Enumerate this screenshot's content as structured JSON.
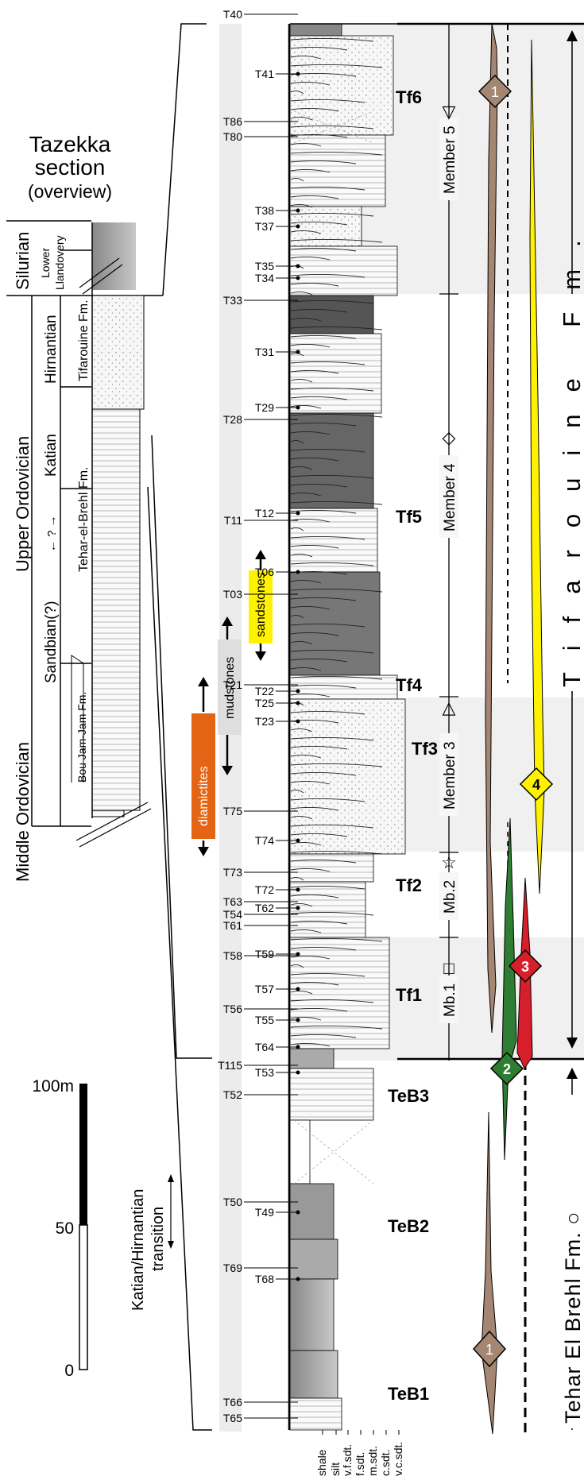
{
  "title": {
    "line1": "Tazekka",
    "line2": "section",
    "line3": "(overview)"
  },
  "overview": {
    "systems": [
      "Silurian",
      "Upper Ordovician",
      "Middle Ordovician"
    ],
    "stages": [
      "Lower",
      "Llandovery",
      "Hirnantian",
      "Katian",
      "Sandbian(?)"
    ],
    "formations": [
      "Tifarouine Fm.",
      "Tehar-el-Brehl Fm.",
      "Bou Jam-Jam Fm."
    ]
  },
  "katian_uncertain": "← ? →",
  "scale": {
    "top": "100m",
    "mid": "50",
    "bottom": "0",
    "value_m": 100
  },
  "transition_label": [
    "Katian/Hirnantian",
    "transition"
  ],
  "lithology_bars": [
    "diamictites",
    "mudstones",
    "sandstones"
  ],
  "samples_left": [
    "T40",
    "T86",
    "T80",
    "T33",
    "T28",
    "T11",
    "T03",
    "T21",
    "T75",
    "T73",
    "T63",
    "T54",
    "T61",
    "T58",
    "T56",
    "T115",
    "T52",
    "T50",
    "T69",
    "T66",
    "T65"
  ],
  "samples_right": [
    "T41",
    "T38",
    "T37",
    "T35",
    "T34",
    "T31",
    "T29",
    "T12",
    "T06",
    "T22",
    "T25",
    "T23",
    "T74",
    "T72",
    "T62",
    "T59",
    "T57",
    "T55",
    "T64",
    "T53",
    "T49",
    "T68"
  ],
  "units": [
    "Tf6",
    "Tf5",
    "Tf4",
    "Tf3",
    "Tf2",
    "Tf1",
    "TeB3",
    "TeB2",
    "TeB1"
  ],
  "members": [
    "Member 5",
    "Member 4",
    "Member 3",
    "Mb.2",
    "Mb.1"
  ],
  "member_symbols": [
    "▽",
    "◇",
    "△",
    "☆",
    "□"
  ],
  "formations_right": {
    "upper": "Tifarouine  Fm.",
    "lower": "Tehar El Brehl Fm. ○"
  },
  "grain_size_axis": [
    "shale",
    "silt",
    "v.f.sdt.",
    "f.sdt.",
    "m.sdt.",
    "c.sdt.",
    "v.c.sdt."
  ],
  "markers": [
    "1",
    "1",
    "2",
    "3",
    "4"
  ],
  "colors": {
    "brown": "#a58672",
    "green": "#2e7d32",
    "red": "#d71f2b",
    "yellow": "#fff200",
    "orange": "#e36414",
    "lightgrey": "#dedede",
    "sandstone": "#f2f2f2"
  }
}
